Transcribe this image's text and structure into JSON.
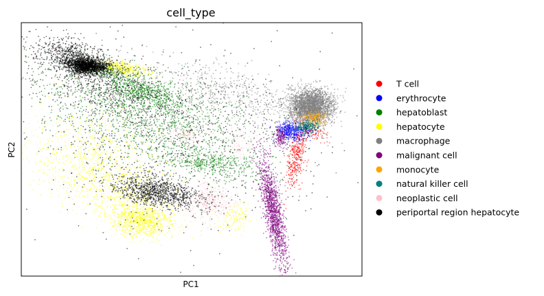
{
  "chart_data": {
    "type": "scatter",
    "title": "cell_type",
    "xlabel": "PC1",
    "ylabel": "PC2",
    "xticks": [],
    "yticks": [],
    "xlim": [
      0,
      100
    ],
    "ylim": [
      0,
      100
    ],
    "grid": false,
    "legend_position": "right",
    "series": [
      {
        "name": "T cell",
        "color": "#ff0000",
        "clusters": [
          {
            "x": 81,
            "y": 48,
            "sx": 1.2,
            "sy": 7,
            "rot": -8,
            "n": 380
          },
          {
            "x": 85,
            "y": 58,
            "sx": 1.5,
            "sy": 3,
            "rot": 40,
            "n": 120
          }
        ]
      },
      {
        "name": "erythrocyte",
        "color": "#0000ff",
        "clusters": [
          {
            "x": 80,
            "y": 57,
            "sx": 2.5,
            "sy": 1.8,
            "rot": 0,
            "n": 320
          },
          {
            "x": 78,
            "y": 58,
            "sx": 1.2,
            "sy": 1.8,
            "rot": 0,
            "n": 120
          }
        ]
      },
      {
        "name": "hepatoblast",
        "color": "#008000",
        "clusters": [
          {
            "x": 36,
            "y": 73,
            "sx": 5.5,
            "sy": 2.5,
            "rot": -25,
            "n": 520
          },
          {
            "x": 26,
            "y": 81,
            "sx": 3,
            "sy": 1.3,
            "rot": -15,
            "n": 160
          },
          {
            "x": 55,
            "y": 45,
            "sx": 7,
            "sy": 2.5,
            "rot": -12,
            "n": 360
          },
          {
            "x": 38,
            "y": 62,
            "sx": 17,
            "sy": 9,
            "rot": -25,
            "n": 1400
          }
        ]
      },
      {
        "name": "hepatocyte",
        "color": "#ffff00",
        "clusters": [
          {
            "x": 30,
            "y": 82,
            "sx": 3.5,
            "sy": 1.3,
            "rot": -12,
            "n": 320
          },
          {
            "x": 35,
            "y": 22,
            "sx": 4.5,
            "sy": 3.2,
            "rot": 0,
            "n": 750
          },
          {
            "x": 27,
            "y": 35,
            "sx": 10,
            "sy": 6,
            "rot": -40,
            "n": 520
          },
          {
            "x": 20,
            "y": 48,
            "sx": 13,
            "sy": 9,
            "rot": -35,
            "n": 600
          },
          {
            "x": 63,
            "y": 23,
            "sx": 2.5,
            "sy": 2.5,
            "rot": 0,
            "n": 120
          }
        ]
      },
      {
        "name": "macrophage",
        "color": "#808080",
        "clusters": [
          {
            "x": 85,
            "y": 67,
            "sx": 3.2,
            "sy": 3.3,
            "rot": 0,
            "n": 2600
          },
          {
            "x": 62,
            "y": 72,
            "sx": 12,
            "sy": 5,
            "rot": -20,
            "n": 500
          }
        ]
      },
      {
        "name": "malignant cell",
        "color": "#800080",
        "clusters": [
          {
            "x": 74,
            "y": 25,
            "sx": 1.3,
            "sy": 11,
            "rot": 8,
            "n": 1300
          },
          {
            "x": 76,
            "y": 55,
            "sx": 1.0,
            "sy": 2.0,
            "rot": 0,
            "n": 160
          }
        ]
      },
      {
        "name": "monocyte",
        "color": "#ffa500",
        "clusters": [
          {
            "x": 86,
            "y": 62,
            "sx": 1.8,
            "sy": 1.8,
            "rot": 0,
            "n": 200
          }
        ]
      },
      {
        "name": "natural killer cell",
        "color": "#008080",
        "clusters": [
          {
            "x": 84,
            "y": 59,
            "sx": 1.6,
            "sy": 1.2,
            "rot": 20,
            "n": 220
          }
        ]
      },
      {
        "name": "neoplastic cell",
        "color": "#ffc0cb",
        "clusters": [
          {
            "x": 55,
            "y": 29,
            "sx": 3.5,
            "sy": 3.5,
            "rot": 0,
            "n": 280
          },
          {
            "x": 48,
            "y": 56,
            "sx": 3,
            "sy": 2,
            "rot": 0,
            "n": 90
          },
          {
            "x": 65,
            "y": 52,
            "sx": 3,
            "sy": 2.5,
            "rot": 0,
            "n": 80
          }
        ]
      },
      {
        "name": "periportal region hepatocyte",
        "color": "#000000",
        "clusters": [
          {
            "x": 19,
            "y": 83,
            "sx": 3,
            "sy": 1.5,
            "rot": -10,
            "n": 1400
          },
          {
            "x": 16,
            "y": 86,
            "sx": 6,
            "sy": 3,
            "rot": -25,
            "n": 650
          },
          {
            "x": 40,
            "y": 33,
            "sx": 7,
            "sy": 3,
            "rot": -15,
            "n": 1000
          },
          {
            "x": 25,
            "y": 75,
            "sx": 14,
            "sy": 6,
            "rot": -25,
            "n": 700
          },
          {
            "x": 45,
            "y": 55,
            "sx": 24,
            "sy": 18,
            "rot": -10,
            "n": 900
          }
        ]
      }
    ]
  }
}
